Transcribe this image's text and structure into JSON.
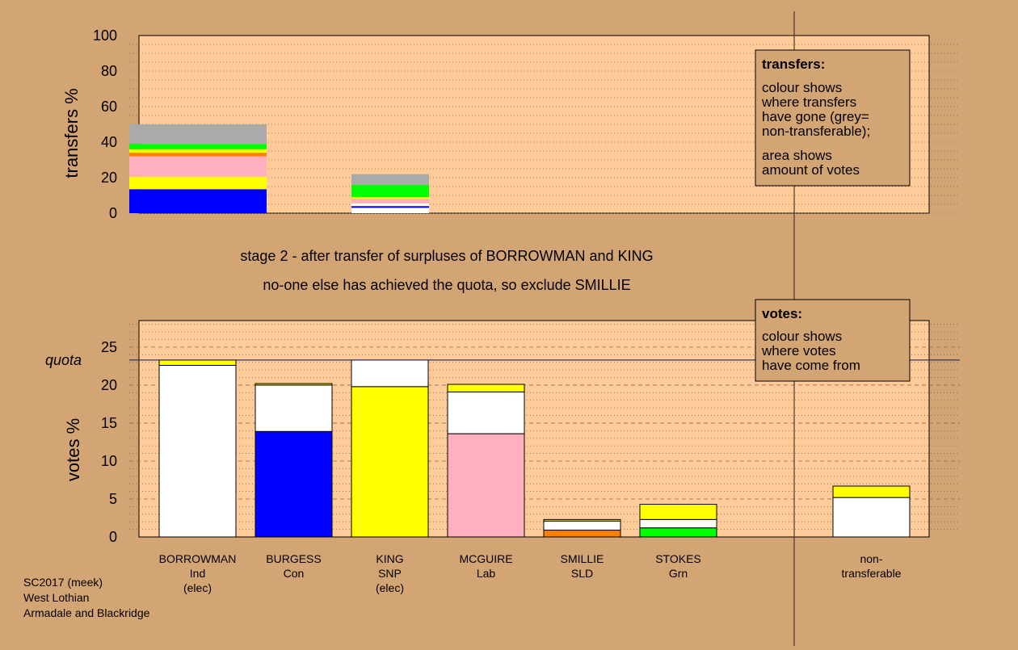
{
  "colors": {
    "background": "#d4a574",
    "plot_bg": "#ffcc99",
    "independent": "#ffffff",
    "Con": "#0000ff",
    "SNP": "#ffff00",
    "Lab": "#ffb0c0",
    "SLD": "#ff8000",
    "Grn": "#00ff00",
    "non_transferable": "#aaaaaa"
  },
  "stage_text": {
    "line1": "stage 2 - after transfer of surpluses of BORROWMAN and KING",
    "line2": "no-one else has achieved the quota, so exclude SMILLIE"
  },
  "legend_transfers": {
    "title": "transfers:",
    "lines1": [
      "colour shows",
      "where transfers",
      "have gone (grey=",
      "non-transferable);"
    ],
    "lines2": [
      "area shows",
      "amount of votes"
    ]
  },
  "legend_votes": {
    "title": "votes:",
    "lines": [
      "colour shows",
      "where votes",
      "have come from"
    ]
  },
  "footer": {
    "lines": [
      "SC2017 (meek)",
      "West Lothian",
      "Armadale and Blackridge"
    ]
  },
  "chart_data": [
    {
      "type": "bar",
      "name": "transfers",
      "ylabel": "transfers %",
      "ylim": [
        0,
        100
      ],
      "yticks": [
        0,
        20,
        40,
        60,
        80,
        100
      ],
      "grid": "dotted every 5",
      "columns": [
        {
          "source": "BORROWMAN",
          "segments": [
            {
              "party": "Con",
              "value": 13.5
            },
            {
              "party": "SNP",
              "value": 7
            },
            {
              "party": "Lab",
              "value": 11.5
            },
            {
              "party": "SLD",
              "value": 2
            },
            {
              "party": "SNP",
              "value": 2
            },
            {
              "party": "Grn",
              "value": 3
            },
            {
              "party": "non_transferable",
              "value": 11
            }
          ]
        },
        {
          "source": "KING",
          "segments": [
            {
              "party": "independent",
              "value": 3
            },
            {
              "party": "Con",
              "value": 1
            },
            {
              "party": "independent",
              "value": 1.5
            },
            {
              "party": "Lab",
              "value": 2.5
            },
            {
              "party": "SNP",
              "value": 1
            },
            {
              "party": "Grn",
              "value": 7
            },
            {
              "party": "non_transferable",
              "value": 6
            }
          ]
        }
      ]
    },
    {
      "type": "bar",
      "name": "votes",
      "ylabel": "votes %",
      "ylim": [
        0,
        28.5
      ],
      "yticks": [
        0,
        5,
        10,
        15,
        20,
        25
      ],
      "quota_label": "quota",
      "quota": 23.3,
      "candidates": [
        {
          "name": "BORROWMAN",
          "party": "Ind",
          "note": "(elec)",
          "segments": [
            {
              "party": "independent",
              "value": 22.6
            },
            {
              "party": "SNP",
              "value": 0.7
            }
          ]
        },
        {
          "name": "BURGESS",
          "party": "Con",
          "note": "",
          "segments": [
            {
              "party": "Con",
              "value": 13.9
            },
            {
              "party": "independent",
              "value": 6.1
            },
            {
              "party": "SNP",
              "value": 0.2
            }
          ]
        },
        {
          "name": "KING",
          "party": "SNP",
          "note": "(elec)",
          "segments": [
            {
              "party": "SNP",
              "value": 19.8
            },
            {
              "party": "independent",
              "value": 3.5
            }
          ]
        },
        {
          "name": "MCGUIRE",
          "party": "Lab",
          "note": "",
          "segments": [
            {
              "party": "Lab",
              "value": 13.6
            },
            {
              "party": "independent",
              "value": 5.5
            },
            {
              "party": "SNP",
              "value": 1.0
            }
          ]
        },
        {
          "name": "SMILLIE",
          "party": "SLD",
          "note": "",
          "segments": [
            {
              "party": "SLD",
              "value": 0.9
            },
            {
              "party": "independent",
              "value": 1.2
            },
            {
              "party": "SNP",
              "value": 0.2
            }
          ]
        },
        {
          "name": "STOKES",
          "party": "Grn",
          "note": "",
          "segments": [
            {
              "party": "Grn",
              "value": 1.2
            },
            {
              "party": "independent",
              "value": 1.1
            },
            {
              "party": "SNP",
              "value": 2.0
            }
          ]
        }
      ],
      "non_transferable": {
        "label": [
          "non-",
          "transferable"
        ],
        "segments": [
          {
            "party": "independent",
            "value": 5.2
          },
          {
            "party": "SNP",
            "value": 1.5
          }
        ]
      }
    }
  ]
}
